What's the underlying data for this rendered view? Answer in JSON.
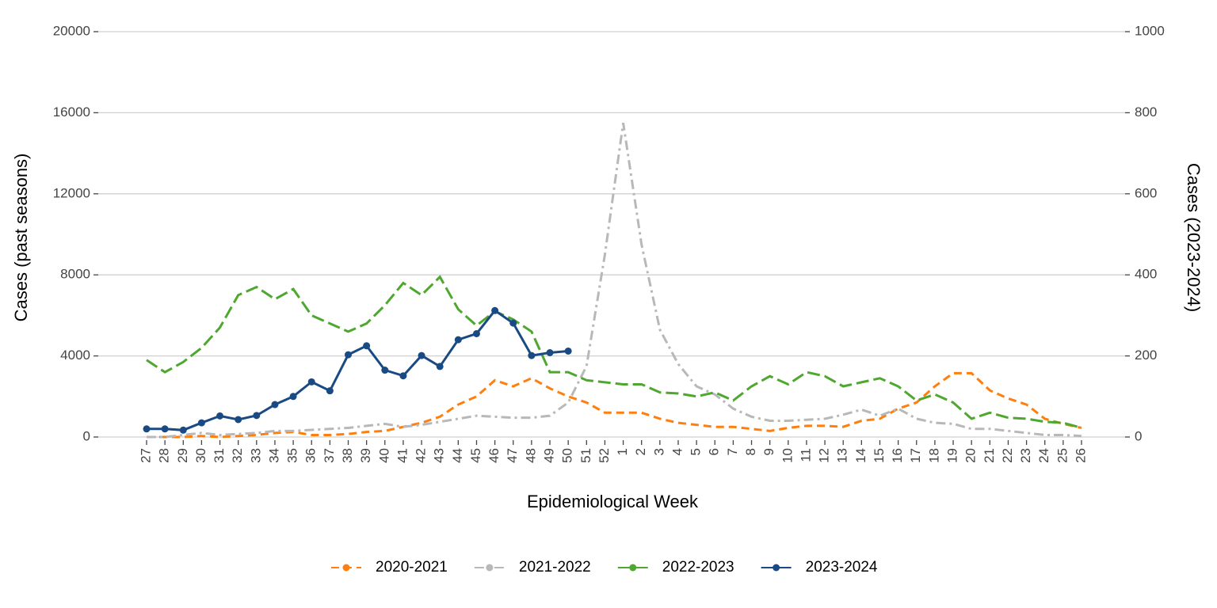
{
  "chart_data": {
    "type": "line",
    "xlabel": "Epidemiological Week",
    "ylabel": "Cases (past seasons)",
    "y2label": "Cases (2023-2024)",
    "categories": [
      "27",
      "28",
      "29",
      "30",
      "31",
      "32",
      "33",
      "34",
      "35",
      "36",
      "37",
      "38",
      "39",
      "40",
      "41",
      "42",
      "43",
      "44",
      "45",
      "46",
      "47",
      "48",
      "49",
      "50",
      "51",
      "52",
      "1",
      "2",
      "3",
      "4",
      "5",
      "6",
      "7",
      "8",
      "9",
      "10",
      "11",
      "12",
      "13",
      "14",
      "15",
      "16",
      "17",
      "18",
      "19",
      "20",
      "21",
      "22",
      "23",
      "24",
      "25",
      "26"
    ],
    "ylim": [
      0,
      20000
    ],
    "yticks": [
      0,
      4000,
      8000,
      12000,
      16000,
      20000
    ],
    "y2lim": [
      0,
      1000
    ],
    "y2ticks": [
      0,
      200,
      400,
      600,
      800,
      1000
    ],
    "grid": true,
    "legend": "bottom",
    "series": [
      {
        "name": "2020-2021",
        "color": "#ff7f0e",
        "line_style": "dashed",
        "values": [
          0,
          0,
          0,
          50,
          0,
          50,
          100,
          200,
          250,
          100,
          100,
          150,
          250,
          300,
          500,
          700,
          1000,
          1600,
          2000,
          2800,
          2500,
          2900,
          2400,
          2000,
          1700,
          1200,
          1200,
          1200,
          900,
          700,
          600,
          500,
          500,
          400,
          300,
          450,
          550,
          550,
          500,
          800,
          900,
          1400,
          1700,
          2500,
          3150,
          3150,
          2300,
          1900,
          1600,
          900,
          650,
          450
        ]
      },
      {
        "name": "2021-2022",
        "color": "#b8b8b8",
        "line_style": "dotdash",
        "values": [
          0,
          0,
          100,
          200,
          100,
          150,
          200,
          300,
          300,
          350,
          400,
          450,
          550,
          650,
          500,
          600,
          750,
          900,
          1050,
          1000,
          950,
          950,
          1050,
          1700,
          3500,
          9000,
          15500,
          9500,
          5300,
          3600,
          2500,
          2100,
          1400,
          1000,
          800,
          800,
          850,
          900,
          1100,
          1350,
          1050,
          1400,
          900,
          700,
          650,
          400,
          400,
          300,
          200,
          100,
          100,
          50
        ]
      },
      {
        "name": "2022-2023",
        "color": "#4ea72e",
        "line_style": "longdash",
        "values": [
          3800,
          3200,
          3700,
          4400,
          5400,
          7000,
          7400,
          6800,
          7300,
          6000,
          5600,
          5200,
          5600,
          6500,
          7600,
          7000,
          7900,
          6300,
          5500,
          6200,
          5800,
          5200,
          3200,
          3200,
          2800,
          2700,
          2600,
          2600,
          2200,
          2150,
          2000,
          2200,
          1800,
          2500,
          3000,
          2600,
          3200,
          3000,
          2500,
          2700,
          2900,
          2500,
          1800,
          2100,
          1700,
          900,
          1200,
          950,
          900,
          750,
          700,
          450
        ]
      },
      {
        "name": "2023-2024",
        "color": "#1a4a84",
        "line_style": "solid",
        "axis": "y2",
        "values": [
          20,
          20,
          17,
          35,
          52,
          43,
          53,
          80,
          100,
          136,
          114,
          203,
          225,
          165,
          151,
          201,
          174,
          240,
          255,
          312,
          281,
          201,
          208,
          212,
          null,
          null,
          null,
          null,
          null,
          null,
          null,
          null,
          null,
          null,
          null,
          null,
          null,
          null,
          null,
          null,
          null,
          null,
          null,
          null,
          null,
          null,
          null,
          null,
          null,
          null,
          null,
          null
        ]
      }
    ]
  }
}
